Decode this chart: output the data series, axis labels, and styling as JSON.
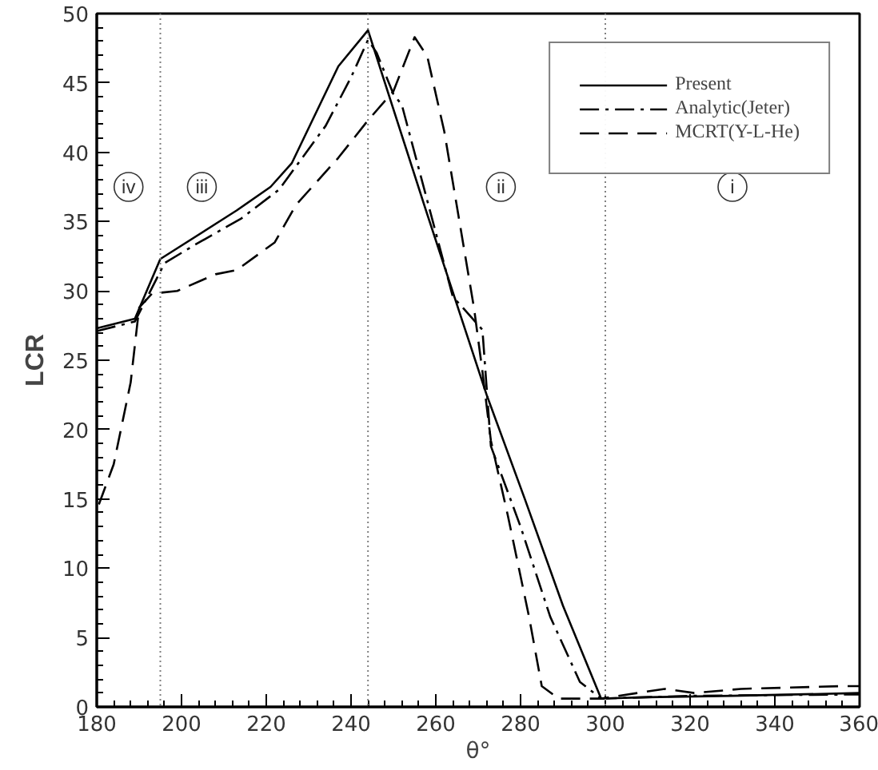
{
  "chart_data": {
    "type": "line",
    "xlabel": "θ°",
    "ylabel": "LCR",
    "xlim": [
      180,
      360
    ],
    "ylim": [
      0,
      50
    ],
    "xticks": [
      180,
      200,
      220,
      240,
      260,
      280,
      300,
      320,
      340,
      360
    ],
    "yticks": [
      0,
      5,
      10,
      15,
      20,
      25,
      30,
      35,
      40,
      45,
      50
    ],
    "grid": false,
    "legend": "top right",
    "marker": "none",
    "series": [
      {
        "name": "Present",
        "color": "#000000",
        "line_style": "solid",
        "x": [
          180,
          189,
          195,
          213,
          221,
          226,
          237,
          244,
          258,
          272,
          281,
          290,
          299,
          310,
          330,
          360
        ],
        "values": [
          27.3,
          28.0,
          32.3,
          35.8,
          37.5,
          39.2,
          46.2,
          48.8,
          35.5,
          22.5,
          15.0,
          7.3,
          0.6,
          0.7,
          0.8,
          1.0
        ]
      },
      {
        "name": "Analytic(Jeter)",
        "color": "#000000",
        "line_style": "dashdot",
        "x": [
          180,
          189,
          196,
          203,
          214,
          223,
          234,
          240,
          244,
          246,
          250,
          252,
          264,
          271,
          273,
          280,
          287,
          294,
          299,
          320,
          360
        ],
        "values": [
          27.1,
          27.8,
          32.0,
          33.3,
          35.2,
          37.3,
          41.9,
          45.4,
          48.1,
          47.2,
          44.2,
          43.4,
          29.6,
          27.2,
          18.8,
          13.0,
          6.5,
          1.8,
          0.6,
          0.8,
          0.9
        ]
      },
      {
        "name": "MCRT(Y-L-He)",
        "color": "#000000",
        "line_style": "dashed",
        "x": [
          180.5,
          184,
          188,
          190,
          193,
          199,
          208,
          213,
          222,
          227,
          237,
          244,
          250,
          255,
          258,
          262,
          269,
          271,
          273,
          277,
          282,
          285,
          289,
          299,
          314,
          321,
          332,
          356,
          360
        ],
        "values": [
          14.6,
          17.5,
          23.4,
          28.8,
          29.8,
          30.0,
          31.2,
          31.5,
          33.5,
          36.2,
          39.6,
          42.3,
          44.4,
          48.3,
          46.9,
          41.5,
          28.8,
          24.2,
          19.2,
          13.8,
          6.5,
          1.5,
          0.6,
          0.6,
          1.3,
          1.0,
          1.3,
          1.5,
          1.5
        ]
      }
    ],
    "ref_lines": [
      {
        "axis": "x",
        "value": 195,
        "color": "#808080",
        "line_style": "dotted"
      },
      {
        "axis": "x",
        "value": 244,
        "color": "#808080",
        "line_style": "dotted"
      },
      {
        "axis": "x",
        "value": 300,
        "color": "#808080",
        "line_style": "dotted"
      }
    ],
    "annotations": [
      "iv",
      "iii",
      "ii",
      "i"
    ]
  }
}
